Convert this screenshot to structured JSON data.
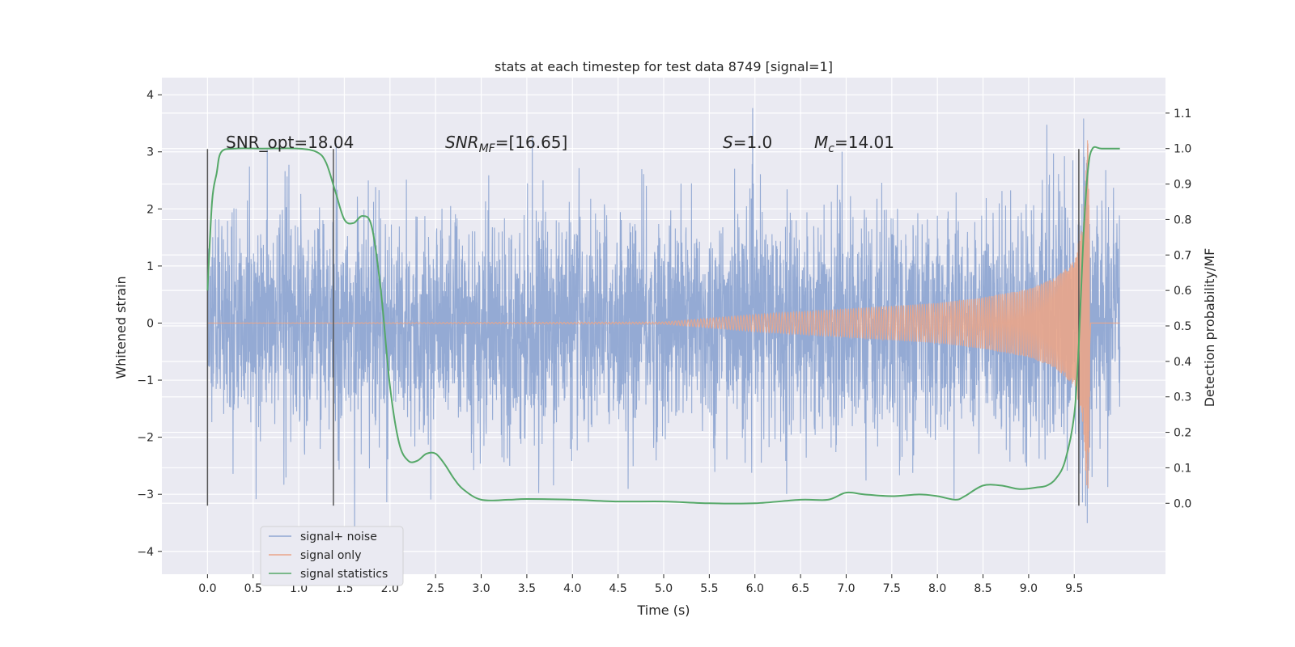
{
  "chart_data": {
    "type": "line",
    "title": "stats at each timestep for test data 8749 [signal=1]",
    "xlabel": "Time (s)",
    "ylabel": "Whitened strain",
    "y2label": "Detection probability/MF",
    "xlim": [
      -0.5,
      10.5
    ],
    "ylim": [
      -4.4,
      4.3
    ],
    "y2lim": [
      -0.2,
      1.2
    ],
    "xticks": [
      "0.0",
      "0.5",
      "1.0",
      "1.5",
      "2.0",
      "2.5",
      "3.0",
      "3.5",
      "4.0",
      "4.5",
      "5.0",
      "5.5",
      "6.0",
      "6.5",
      "7.0",
      "7.5",
      "8.0",
      "8.5",
      "9.0",
      "9.5"
    ],
    "yticks": [
      "4",
      "3",
      "2",
      "1",
      "0",
      "−1",
      "−2",
      "−3",
      "−4"
    ],
    "y2ticks": [
      "1.1",
      "1.0",
      "0.9",
      "0.8",
      "0.7",
      "0.6",
      "0.5",
      "0.4",
      "0.3",
      "0.2",
      "0.1",
      "0.0"
    ],
    "grid": true,
    "legend_position": "lower-left",
    "annotations": {
      "snr_opt": "SNR_opt=18.04",
      "snr_mf_main": "SNR",
      "snr_mf_sub": "MF",
      "snr_mf_rest": "=[16.65]",
      "s_main": "S",
      "s_rest": "=1.0",
      "mc_main": "M",
      "mc_sub": "c",
      "mc_rest": "=14.01"
    },
    "vlines_x": [
      0.0,
      1.38,
      9.55
    ],
    "vline_range": [
      -3.2,
      3.05
    ],
    "series": [
      {
        "name": "signal+ noise",
        "color": "#8fa6d2",
        "description": "whitened noisy strain, roughly within ±2.5 with spikes up to ±4",
        "x_range": [
          0.0,
          10.0
        ],
        "approx_envelope": 2.5
      },
      {
        "name": "signal only",
        "color": "#e9a58a",
        "description": "chirp amplitude growing to ~3.4 at ~9.65 s",
        "x_range": [
          0.0,
          10.0
        ],
        "envelope_points": [
          [
            0.0,
            0.0
          ],
          [
            5.0,
            0.02
          ],
          [
            6.0,
            0.15
          ],
          [
            7.0,
            0.25
          ],
          [
            8.0,
            0.35
          ],
          [
            8.5,
            0.45
          ],
          [
            9.0,
            0.6
          ],
          [
            9.3,
            0.8
          ],
          [
            9.5,
            1.1
          ],
          [
            9.6,
            1.8
          ],
          [
            9.65,
            3.4
          ],
          [
            9.68,
            0.0
          ]
        ]
      },
      {
        "name": "signal statistics",
        "color": "#55a868",
        "axis": "right",
        "x": [
          0.0,
          0.05,
          0.1,
          0.15,
          0.3,
          0.6,
          1.0,
          1.2,
          1.3,
          1.4,
          1.5,
          1.6,
          1.7,
          1.8,
          1.9,
          2.0,
          2.1,
          2.2,
          2.3,
          2.4,
          2.5,
          2.6,
          2.7,
          2.8,
          3.0,
          3.3,
          3.5,
          4.0,
          4.5,
          5.0,
          5.5,
          6.0,
          6.5,
          6.8,
          7.0,
          7.2,
          7.5,
          7.8,
          8.0,
          8.2,
          8.3,
          8.5,
          8.7,
          8.9,
          9.1,
          9.2,
          9.3,
          9.4,
          9.5,
          9.55,
          9.6,
          9.65,
          9.7,
          9.8,
          10.0
        ],
        "y": [
          0.6,
          0.85,
          0.93,
          0.99,
          1.0,
          1.0,
          1.0,
          0.99,
          0.96,
          0.88,
          0.8,
          0.79,
          0.81,
          0.78,
          0.6,
          0.33,
          0.17,
          0.12,
          0.12,
          0.14,
          0.14,
          0.11,
          0.07,
          0.04,
          0.01,
          0.01,
          0.012,
          0.01,
          0.005,
          0.005,
          0.0,
          0.0,
          0.01,
          0.01,
          0.03,
          0.025,
          0.02,
          0.025,
          0.02,
          0.01,
          0.02,
          0.05,
          0.05,
          0.04,
          0.045,
          0.05,
          0.07,
          0.12,
          0.25,
          0.45,
          0.75,
          0.94,
          1.0,
          1.0,
          1.0
        ]
      }
    ]
  }
}
